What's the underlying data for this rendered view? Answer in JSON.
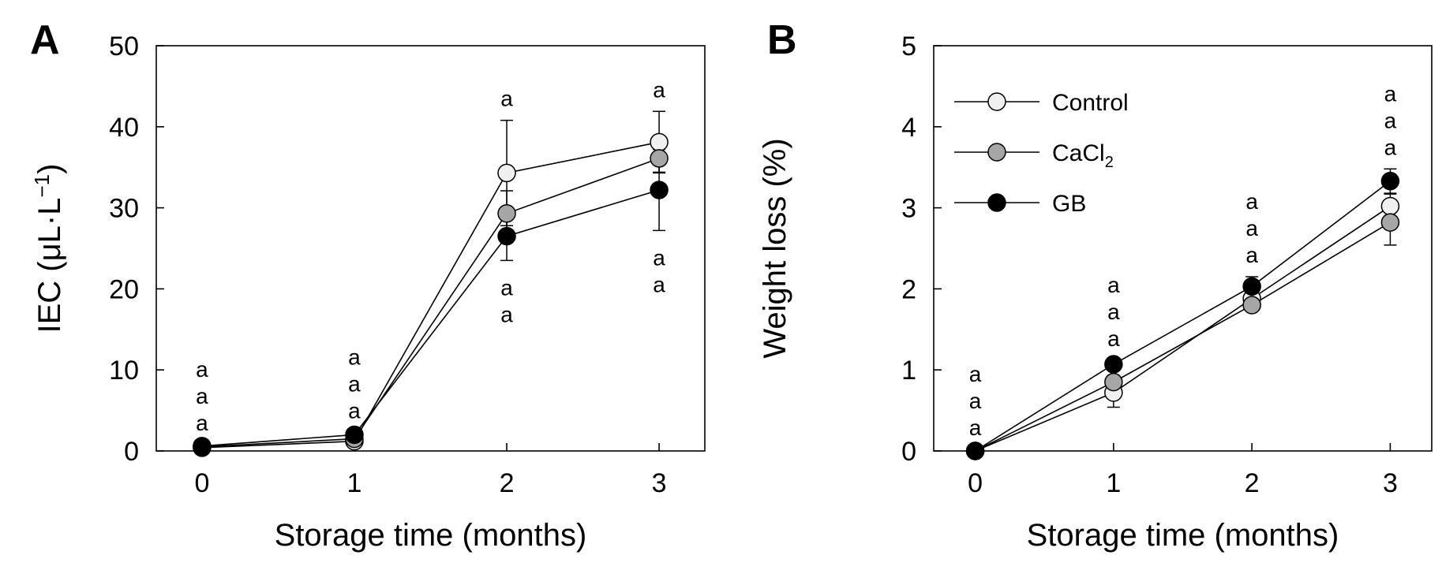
{
  "figure": {
    "colors": {
      "Control": "#f0f0f0",
      "CaCl2": "#a6a6a6",
      "GB": "#000000",
      "line": "#000000",
      "background": "#ffffff"
    }
  },
  "chart_data": [
    {
      "panel": "A",
      "type": "line",
      "title": "",
      "xlabel": "Storage time (months)",
      "ylabel": "IEC (μL·L⁻¹)",
      "ylabel_parts": {
        "base": "IEC (μL·L",
        "sup": "−1",
        "close": ")"
      },
      "x": [
        0,
        1,
        2,
        3
      ],
      "xlim": [
        -0.3,
        3.3
      ],
      "ylim": [
        0,
        50
      ],
      "xticks": [
        "0",
        "1",
        "2",
        "3"
      ],
      "yticks": [
        "0",
        "10",
        "20",
        "30",
        "40",
        "50"
      ],
      "grid": false,
      "series": [
        {
          "name": "Control",
          "values": [
            0.4,
            1.2,
            34.3,
            38.1
          ],
          "errors": [
            0.2,
            0.3,
            6.5,
            3.8
          ]
        },
        {
          "name": "CaCl2",
          "values": [
            0.5,
            1.5,
            29.3,
            36.1
          ],
          "errors": [
            0.2,
            0.3,
            2.8,
            1.7
          ]
        },
        {
          "name": "GB",
          "values": [
            0.6,
            2.0,
            26.5,
            32.2
          ],
          "errors": [
            0.2,
            0.3,
            3.0,
            5.0
          ]
        }
      ],
      "annotations": [
        {
          "x": 0,
          "letters": [
            "a",
            "a",
            "a"
          ],
          "position": "above"
        },
        {
          "x": 1,
          "letters": [
            "a",
            "a",
            "a"
          ],
          "position": "above"
        },
        {
          "x": 2,
          "letters": [
            "a"
          ],
          "position": "above"
        },
        {
          "x": 2,
          "letters": [
            "a",
            "a"
          ],
          "position": "below"
        },
        {
          "x": 3,
          "letters": [
            "a"
          ],
          "position": "above"
        },
        {
          "x": 3,
          "letters": [
            "a",
            "a"
          ],
          "position": "below"
        }
      ]
    },
    {
      "panel": "B",
      "type": "line",
      "title": "",
      "xlabel": "Storage time (months)",
      "ylabel": "Weight loss (%)",
      "x": [
        0,
        1,
        2,
        3
      ],
      "xlim": [
        -0.3,
        3.3
      ],
      "ylim": [
        0,
        5
      ],
      "xticks": [
        "0",
        "1",
        "2",
        "3"
      ],
      "yticks": [
        "0",
        "1",
        "2",
        "3",
        "4",
        "5"
      ],
      "grid": false,
      "legend_position": "top-left",
      "legend": [
        {
          "name": "Control",
          "label": "Control"
        },
        {
          "name": "CaCl2",
          "label": "CaCl",
          "sub": "2"
        },
        {
          "name": "GB",
          "label": "GB"
        }
      ],
      "series": [
        {
          "name": "Control",
          "values": [
            0.0,
            0.72,
            1.88,
            3.02
          ],
          "errors": [
            0.02,
            0.18,
            0.06,
            0.15
          ]
        },
        {
          "name": "CaCl2",
          "values": [
            0.0,
            0.85,
            1.8,
            2.82
          ],
          "errors": [
            0.02,
            0.08,
            0.06,
            0.28
          ]
        },
        {
          "name": "GB",
          "values": [
            0.0,
            1.07,
            2.03,
            3.33
          ],
          "errors": [
            0.02,
            0.05,
            0.12,
            0.15
          ]
        }
      ],
      "annotations": [
        {
          "x": 0,
          "letters": [
            "a",
            "a",
            "a"
          ],
          "position": "above"
        },
        {
          "x": 1,
          "letters": [
            "a",
            "a",
            "a"
          ],
          "position": "above"
        },
        {
          "x": 2,
          "letters": [
            "a",
            "a",
            "a"
          ],
          "position": "above"
        },
        {
          "x": 3,
          "letters": [
            "a",
            "a",
            "a"
          ],
          "position": "above"
        }
      ]
    }
  ]
}
